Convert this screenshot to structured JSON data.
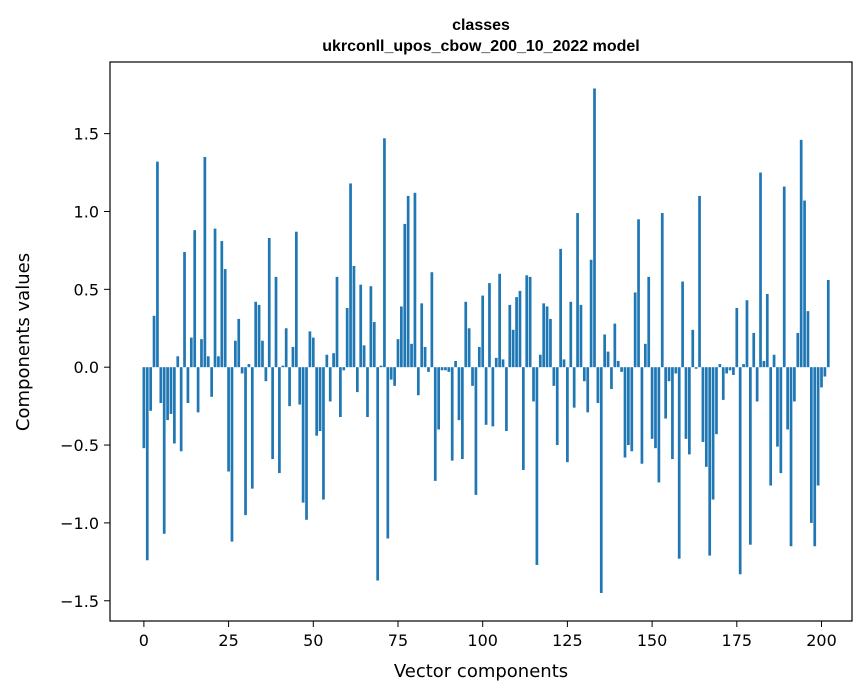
{
  "chart_data": {
    "type": "bar",
    "title_line1": "classes",
    "title_line2": "ukrconll_upos_cbow_200_10_2022 model",
    "xlabel": "Vector components",
    "ylabel": "Components values",
    "xlim": [
      -10,
      209
    ],
    "ylim": [
      -1.63,
      1.96
    ],
    "xticks": [
      0,
      25,
      50,
      75,
      100,
      125,
      150,
      175,
      200
    ],
    "xtick_labels": [
      "0",
      "25",
      "50",
      "75",
      "100",
      "125",
      "150",
      "175",
      "200"
    ],
    "yticks": [
      -1.5,
      -1.0,
      -0.5,
      0.0,
      0.5,
      1.0,
      1.5
    ],
    "ytick_labels": [
      "−1.5",
      "−1.0",
      "−0.5",
      "0.0",
      "0.5",
      "1.0",
      "1.5"
    ],
    "bar_color": "#1f77b4",
    "grid": false,
    "values": [
      -0.52,
      -1.24,
      -0.28,
      0.33,
      1.32,
      -0.23,
      -1.07,
      -0.34,
      -0.3,
      -0.49,
      0.07,
      -0.54,
      0.74,
      -0.23,
      0.19,
      0.88,
      -0.29,
      0.18,
      1.35,
      0.07,
      -0.19,
      0.89,
      0.07,
      0.81,
      0.63,
      -0.67,
      -1.12,
      0.17,
      0.31,
      -0.04,
      -0.95,
      0.02,
      -0.78,
      0.42,
      0.4,
      0.17,
      -0.09,
      0.83,
      -0.59,
      0.58,
      -0.68,
      0.01,
      0.25,
      -0.25,
      0.13,
      0.87,
      -0.24,
      -0.87,
      -0.98,
      0.23,
      0.19,
      -0.44,
      -0.41,
      -0.85,
      0.08,
      -0.22,
      0.09,
      0.58,
      -0.32,
      -0.02,
      0.38,
      1.18,
      0.65,
      -0.16,
      0.53,
      0.14,
      -0.32,
      0.52,
      0.29,
      -1.37,
      0.01,
      1.47,
      -1.1,
      -0.08,
      -0.12,
      0.18,
      0.39,
      0.92,
      1.1,
      0.15,
      1.12,
      -0.18,
      0.41,
      0.13,
      -0.03,
      0.61,
      -0.73,
      -0.4,
      -0.02,
      -0.02,
      -0.03,
      -0.6,
      0.04,
      -0.34,
      -0.59,
      0.42,
      0.25,
      -0.12,
      -0.82,
      0.13,
      0.46,
      -0.37,
      0.54,
      -0.38,
      0.06,
      0.6,
      0.05,
      -0.41,
      0.4,
      0.24,
      0.45,
      0.49,
      -0.66,
      0.59,
      0.58,
      -0.22,
      -1.27,
      0.08,
      0.41,
      0.39,
      0.31,
      -0.12,
      -0.5,
      0.76,
      0.05,
      -0.61,
      0.42,
      -0.26,
      0.99,
      0.4,
      -0.09,
      -0.29,
      0.69,
      1.79,
      -0.23,
      -1.45,
      0.21,
      0.1,
      -0.14,
      0.28,
      0.04,
      -0.03,
      -0.58,
      -0.5,
      -0.54,
      0.48,
      0.95,
      -0.62,
      0.15,
      0.58,
      -0.46,
      -0.52,
      -0.74,
      0.99,
      -0.33,
      -0.09,
      -0.59,
      -0.04,
      -1.23,
      0.55,
      -0.46,
      -0.56,
      0.24,
      -0.01,
      1.1,
      -0.48,
      -0.64,
      -1.21,
      -0.85,
      -0.43,
      0.02,
      -0.21,
      -0.04,
      -0.02,
      -0.05,
      0.38,
      -1.33,
      0.02,
      0.43,
      -1.14,
      0.22,
      -0.22,
      1.25,
      0.04,
      0.47,
      -0.76,
      0.08,
      -0.51,
      -0.68,
      1.16,
      -0.4,
      -1.15,
      -0.22,
      0.22,
      1.46,
      1.07,
      0.36,
      -1.0,
      -1.15,
      -0.76,
      -0.13,
      -0.06,
      0.56
    ]
  }
}
